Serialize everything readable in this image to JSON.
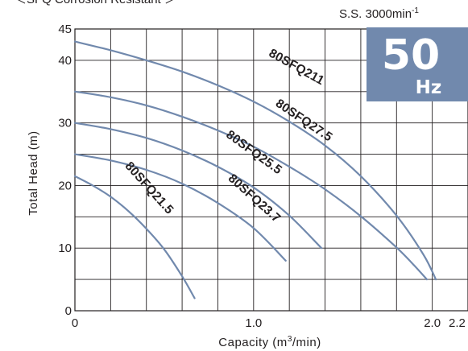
{
  "header_text": "＜SFQ  Corrosion Resistant ＞",
  "speed": {
    "prefix": "S.S. 3000min",
    "sup": "-1"
  },
  "badge": {
    "value": "50",
    "unit": "Hz",
    "color": "#7189ad"
  },
  "chart_data": {
    "type": "line",
    "xlabel_parts": [
      "Capacity (m",
      "3",
      "/min)"
    ],
    "ylabel": "Total Head (m)",
    "xlim": [
      0,
      2.2
    ],
    "ylim": [
      0,
      45
    ],
    "x_ticks": [
      {
        "value": 0,
        "label": "0"
      },
      {
        "value": 1.0,
        "label": "1.0"
      },
      {
        "value": 2.0,
        "label": "2.0"
      },
      {
        "value": 2.2,
        "label": "2.2"
      }
    ],
    "y_ticks": [
      {
        "value": 0,
        "label": "0"
      },
      {
        "value": 10,
        "label": "10"
      },
      {
        "value": 20,
        "label": "20"
      },
      {
        "value": 30,
        "label": "30"
      },
      {
        "value": 40,
        "label": "40"
      },
      {
        "value": 45,
        "label": "45"
      }
    ],
    "grid": true,
    "curve_color": "#7189ad",
    "series": [
      {
        "name": "80SFQ211",
        "x": [
          0,
          0.2,
          0.4,
          0.6,
          0.8,
          1.0,
          1.2,
          1.4,
          1.6,
          1.8,
          1.95,
          2.02
        ],
        "y": [
          43,
          41.6,
          40,
          38.2,
          36,
          33.4,
          30.2,
          26.4,
          21.5,
          15.2,
          9,
          5
        ]
      },
      {
        "name": "80SFQ27.5",
        "x": [
          0,
          0.2,
          0.4,
          0.6,
          0.8,
          1.0,
          1.2,
          1.4,
          1.6,
          1.8,
          1.9,
          1.97
        ],
        "y": [
          35,
          34.1,
          32.8,
          31,
          28.8,
          26.2,
          23,
          19.4,
          15.1,
          10.1,
          7.2,
          5
        ]
      },
      {
        "name": "80SFQ25.5",
        "x": [
          0,
          0.2,
          0.4,
          0.6,
          0.8,
          1.0,
          1.2,
          1.38
        ],
        "y": [
          30,
          29,
          27.6,
          25.6,
          23,
          19.7,
          15.2,
          10
        ]
      },
      {
        "name": "80SFQ23.7",
        "x": [
          0,
          0.2,
          0.4,
          0.6,
          0.8,
          1.0,
          1.18
        ],
        "y": [
          25,
          24,
          22.5,
          20.3,
          17.2,
          13.2,
          8
        ]
      },
      {
        "name": "80SFQ21.5",
        "x": [
          0,
          0.1,
          0.2,
          0.3,
          0.4,
          0.5,
          0.6,
          0.67
        ],
        "y": [
          21.5,
          20,
          18.2,
          15.9,
          13.1,
          9.8,
          5.5,
          2
        ]
      }
    ],
    "labels": [
      {
        "text": "80SFQ211",
        "x": 1.23,
        "y": 38.4,
        "angle": 29
      },
      {
        "text": "80SFQ27.5",
        "x": 1.27,
        "y": 29.9,
        "angle": 34
      },
      {
        "text": "80SFQ25.5",
        "x": 0.99,
        "y": 24.8,
        "angle": 36
      },
      {
        "text": "80SFQ23.7",
        "x": 0.99,
        "y": 17.5,
        "angle": 42
      },
      {
        "text": "80SFQ21.5",
        "x": 0.4,
        "y": 19.2,
        "angle": 48
      }
    ]
  }
}
